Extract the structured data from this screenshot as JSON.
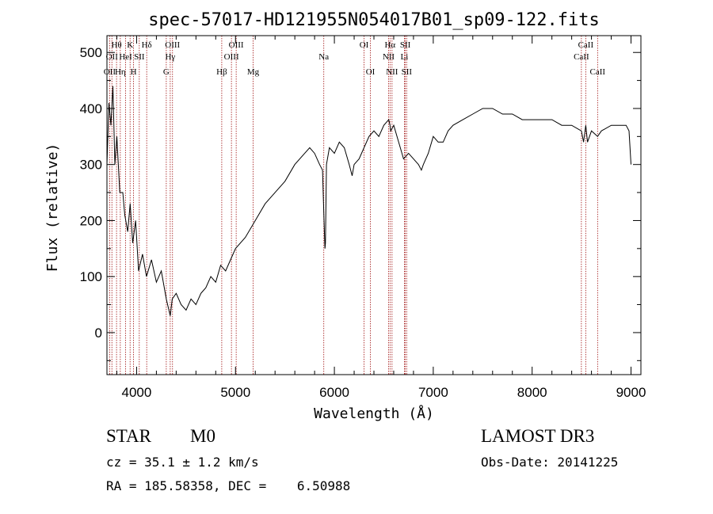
{
  "chart_data": {
    "type": "line",
    "title": "spec-57017-HD121955N054017B01_sp09-122.fits",
    "xlabel": "Wavelength (Å)",
    "ylabel": "Flux (relative)",
    "xlim": [
      3700,
      9100
    ],
    "ylim": [
      -75,
      530
    ],
    "xticks": [
      4000,
      5000,
      6000,
      7000,
      8000,
      9000
    ],
    "yticks": [
      0,
      100,
      200,
      300,
      400,
      500
    ],
    "grid": false,
    "series": [
      {
        "x": [
          3700,
          3720,
          3740,
          3760,
          3780,
          3800,
          3830,
          3860,
          3880,
          3910,
          3935,
          3960,
          3990,
          4020,
          4060,
          4100,
          4150,
          4200,
          4250,
          4300,
          4340,
          4360,
          4400,
          4450,
          4500,
          4550,
          4600,
          4650,
          4700,
          4750,
          4800,
          4850,
          4900,
          4950,
          5000,
          5100,
          5200,
          5300,
          5400,
          5500,
          5600,
          5700,
          5750,
          5800,
          5850,
          5880,
          5895,
          5905,
          5910,
          5920,
          5950,
          6000,
          6050,
          6100,
          6150,
          6180,
          6200,
          6250,
          6300,
          6350,
          6400,
          6450,
          6500,
          6550,
          6563,
          6570,
          6600,
          6650,
          6700,
          6750,
          6800,
          6850,
          6880,
          6900,
          6950,
          7000,
          7050,
          7100,
          7150,
          7200,
          7300,
          7400,
          7500,
          7600,
          7700,
          7800,
          7900,
          8000,
          8100,
          8200,
          8300,
          8400,
          8498,
          8520,
          8542,
          8560,
          8600,
          8662,
          8700,
          8800,
          8900,
          8950,
          8980,
          9000
        ],
        "values": [
          300,
          410,
          370,
          440,
          300,
          350,
          250,
          250,
          210,
          180,
          230,
          160,
          200,
          110,
          140,
          100,
          130,
          90,
          110,
          60,
          30,
          60,
          70,
          50,
          40,
          60,
          50,
          70,
          80,
          100,
          90,
          120,
          110,
          130,
          150,
          170,
          200,
          230,
          250,
          270,
          300,
          320,
          330,
          320,
          300,
          290,
          200,
          150,
          160,
          300,
          330,
          320,
          340,
          330,
          300,
          280,
          300,
          310,
          330,
          350,
          360,
          350,
          370,
          380,
          370,
          360,
          370,
          340,
          310,
          320,
          310,
          300,
          290,
          300,
          320,
          350,
          340,
          340,
          360,
          370,
          380,
          390,
          400,
          400,
          390,
          390,
          380,
          380,
          380,
          380,
          370,
          370,
          360,
          340,
          370,
          340,
          360,
          350,
          360,
          370,
          370,
          370,
          360,
          300
        ]
      }
    ],
    "lines": [
      {
        "x": 3727,
        "label": "OII",
        "row": 2
      },
      {
        "x": 3750,
        "label": "OII",
        "row": 1
      },
      {
        "x": 3797,
        "label": "Hθ",
        "row": 0
      },
      {
        "x": 3835,
        "label": "Hη",
        "row": 2
      },
      {
        "x": 3889,
        "label": "HeI",
        "row": 1
      },
      {
        "x": 3934,
        "label": "K",
        "row": 0
      },
      {
        "x": 3969,
        "label": "H",
        "row": 2
      },
      {
        "x": 4027,
        "label": "SII",
        "row": 1
      },
      {
        "x": 4102,
        "label": "Hδ",
        "row": 0
      },
      {
        "x": 4300,
        "label": "G",
        "row": 2
      },
      {
        "x": 4340,
        "label": "Hγ",
        "row": 1
      },
      {
        "x": 4363,
        "label": "OIII",
        "row": 0
      },
      {
        "x": 4861,
        "label": "Hβ",
        "row": 2
      },
      {
        "x": 4959,
        "label": "OIII",
        "row": 1
      },
      {
        "x": 5007,
        "label": "OIII",
        "row": 0
      },
      {
        "x": 5178,
        "label": "Mg",
        "row": 2
      },
      {
        "x": 5893,
        "label": "Na",
        "row": 1
      },
      {
        "x": 6300,
        "label": "OI",
        "row": 0
      },
      {
        "x": 6364,
        "label": "OI",
        "row": 2
      },
      {
        "x": 6548,
        "label": "NII",
        "row": 1
      },
      {
        "x": 6563,
        "label": "Hα",
        "row": 0
      },
      {
        "x": 6583,
        "label": "NII",
        "row": 2
      },
      {
        "x": 6708,
        "label": "Li",
        "row": 1
      },
      {
        "x": 6717,
        "label": "SII",
        "row": 0
      },
      {
        "x": 6731,
        "label": "SII",
        "row": 2
      },
      {
        "x": 8498,
        "label": "CaII",
        "row": 1
      },
      {
        "x": 8542,
        "label": "CaII",
        "row": 0
      },
      {
        "x": 8662,
        "label": "CaII",
        "row": 2
      }
    ],
    "colors": {
      "line": "#000000",
      "marker": "#a01010",
      "axis": "#000000"
    }
  },
  "info": {
    "object_class": "STAR",
    "subclass": "M0",
    "survey": "LAMOST DR3",
    "redshift": "cz = 35.1 ± 1.2 km/s",
    "obs_date": "Obs-Date: 20141225",
    "coords": "RA = 185.58358, DEC =    6.50988"
  }
}
